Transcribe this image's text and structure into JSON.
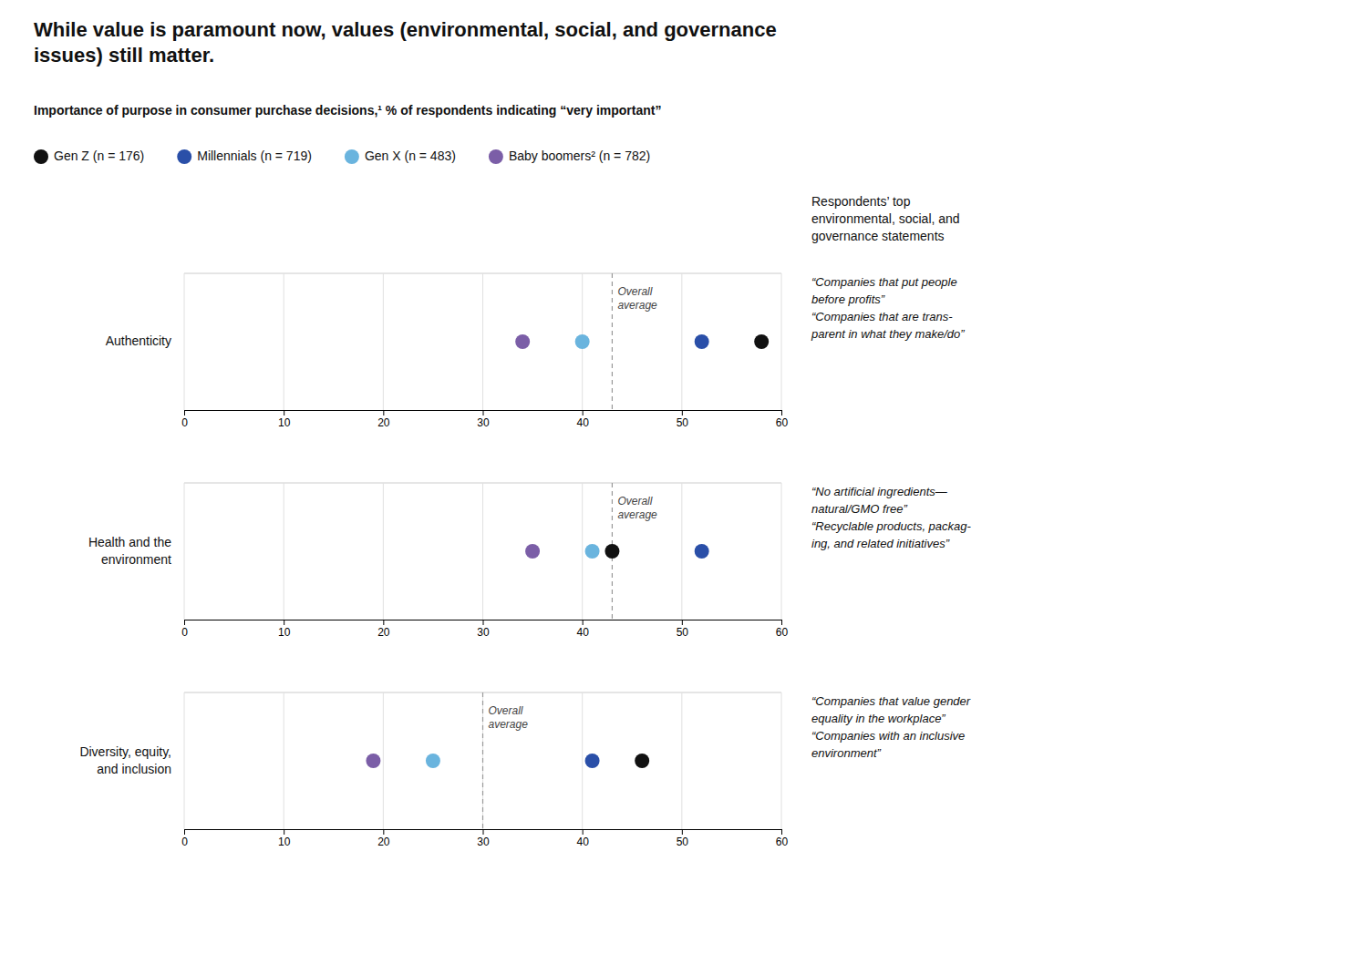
{
  "chart_data": {
    "type": "dot",
    "title": "While value is paramount now, values (environmental, social, and governance\nissues) still matter.",
    "subtitle": "Importance of purpose in consumer purchase decisions,¹ % of respondents indicating “very important”",
    "categories": [
      "Authenticity",
      "Health and the\nenvironment",
      "Diversity, equity,\nand inclusion"
    ],
    "series": [
      {
        "name": "Gen Z (n = 176)",
        "color": "#111111",
        "values": [
          58,
          43,
          46
        ]
      },
      {
        "name": "Millennials (n = 719)",
        "color": "#2a4fa8",
        "values": [
          52,
          52,
          41
        ]
      },
      {
        "name": "Gen X (n = 483)",
        "color": "#6ab4de",
        "values": [
          40,
          41,
          25
        ]
      },
      {
        "name": "Baby boomers² (n = 782)",
        "color": "#7b5ea7",
        "values": [
          34,
          35,
          19
        ]
      }
    ],
    "averages": [
      43,
      43,
      30
    ],
    "average_label": "Overall\naverage",
    "annotation_header": "Respondents’ top\nenvironmental, social, and\ngovernance statements",
    "annotations": [
      "“Companies that put people\nbefore profits”\n\n“Companies that are trans-\nparent in what they make/do”",
      "“No artificial ingredients—\nnatural/GMO free”\n\n“Recyclable products, packag-\ning, and related initiatives”",
      "“Companies that value gender\nequality in the workplace”\n\n“Companies with an inclusive\nenvironment”"
    ],
    "xlim": [
      0,
      60
    ],
    "xticks": [
      0,
      10,
      20,
      30,
      40,
      50,
      60
    ],
    "grid": true,
    "legend": "top-left"
  }
}
